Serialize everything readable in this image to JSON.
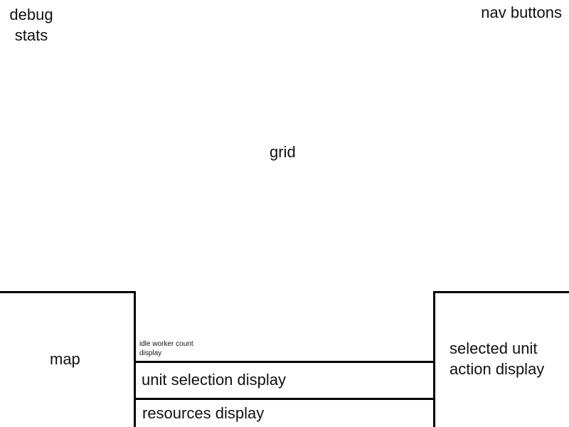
{
  "debug_stats": {
    "label": "debug stats"
  },
  "nav_buttons": {
    "label": "nav buttons"
  },
  "grid": {
    "label": "grid"
  },
  "map": {
    "label": "map"
  },
  "idle_worker_count": {
    "label": "idle worker count display"
  },
  "unit_selection": {
    "label": "unit selection display"
  },
  "resources": {
    "label": "resources display"
  },
  "selected_unit_actions": {
    "label": "selected unit action display"
  },
  "colors": {
    "border": "#000000",
    "background": "#ffffff",
    "text": "#111111"
  }
}
